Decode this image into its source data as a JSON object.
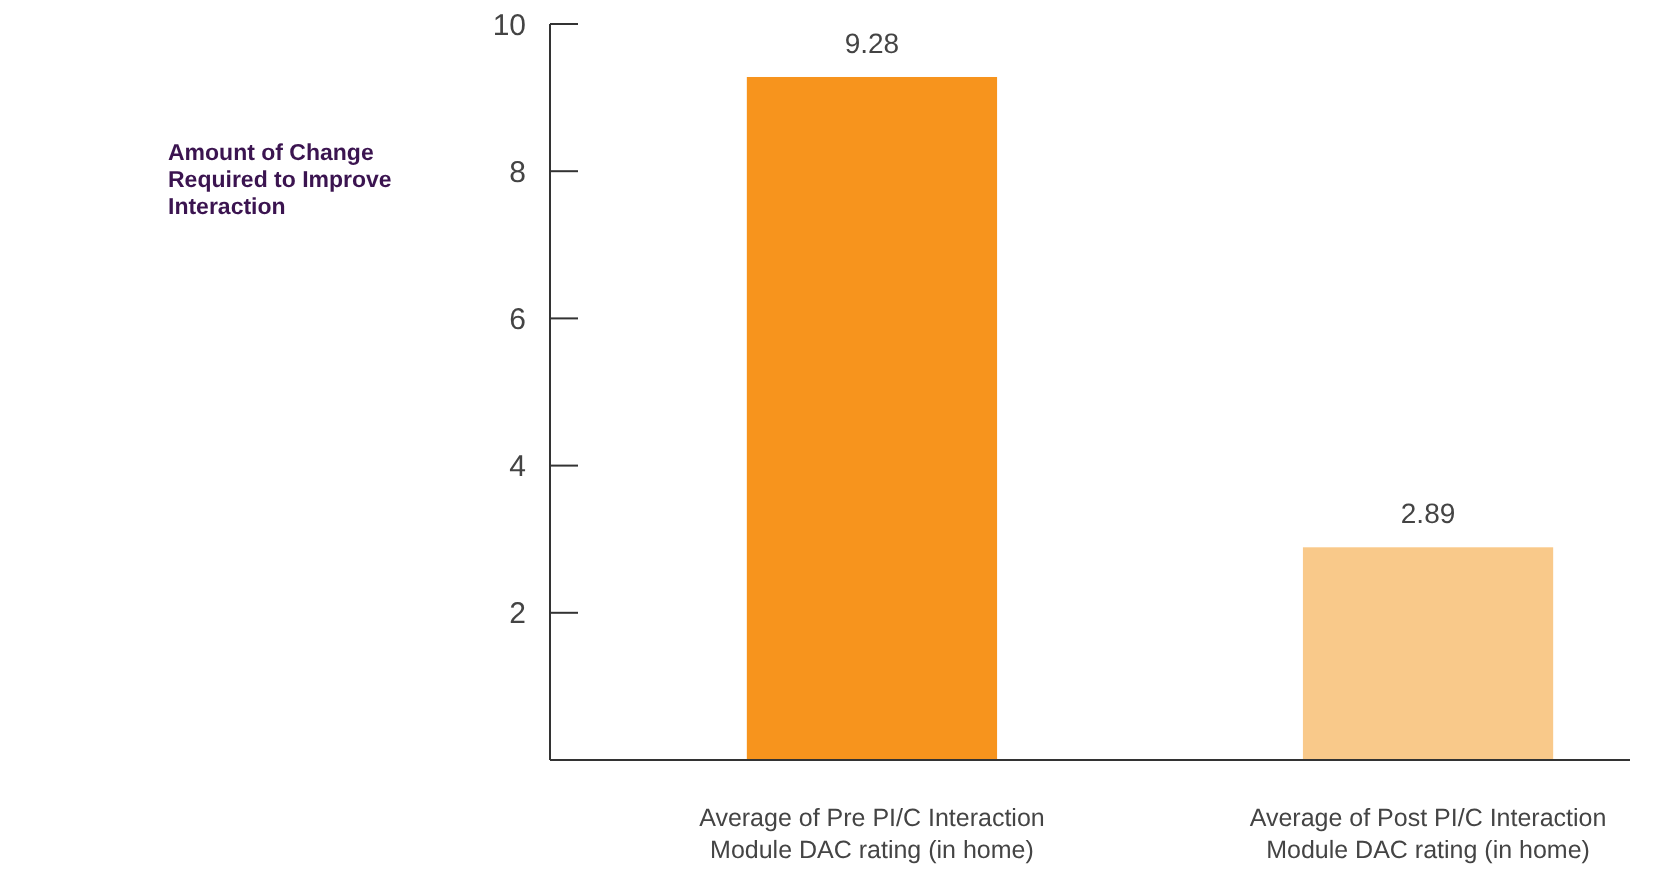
{
  "chart_data": {
    "type": "bar",
    "ylabel": "Amount of Change Required to Improve Interaction",
    "categories": [
      "Average of Pre PI/C Interaction Module DAC rating (in home)",
      "Average of Post PI/C Interaction Module DAC rating (in home)"
    ],
    "values": [
      9.28,
      2.89
    ],
    "colors": [
      "#f7941d",
      "#f9c98a"
    ],
    "ylim": [
      0,
      10
    ],
    "yticks": [
      2,
      4,
      6,
      8,
      10
    ],
    "data_labels": true
  }
}
